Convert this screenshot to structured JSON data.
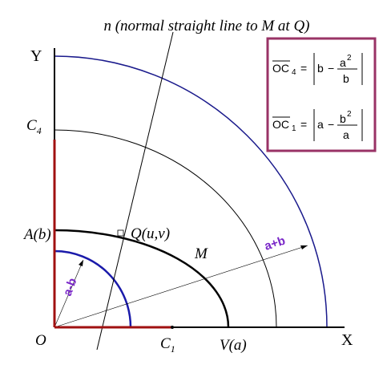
{
  "title": "n (normal straight line to M at Q)",
  "axes": {
    "x": "X",
    "y": "Y"
  },
  "points": {
    "origin": "O",
    "c4": {
      "text": "C",
      "sub": "4"
    },
    "a": "A(b)",
    "q": "Q(u,v)",
    "v": "V(a)",
    "c1": {
      "text": "C",
      "sub": "1"
    }
  },
  "curve": "M",
  "radii": {
    "outer": "a+b",
    "inner": "a-b"
  },
  "formulas": [
    {
      "lhs": "OC",
      "sub": "4",
      "eq": "=",
      "term": "b",
      "op": "−",
      "num": "a",
      "exp": "2",
      "den": "b"
    },
    {
      "lhs": "OC",
      "sub": "1",
      "eq": "=",
      "term": "a",
      "op": "−",
      "num": "b",
      "exp": "2",
      "den": "a"
    }
  ]
}
